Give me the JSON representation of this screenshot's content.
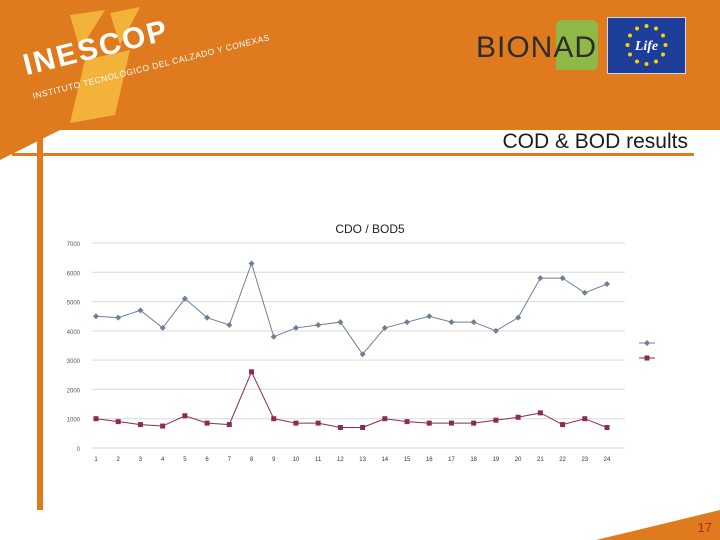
{
  "header": {
    "inescop_word": "INESCOP",
    "inescop_tagline": "INSTITUTO TECNOLÓGICO DEL CALZADO Y CONEXAS",
    "bionad_logo_text": "BIONAD",
    "life_logo_text": "Life",
    "accent_color": "#e07a1f"
  },
  "slide": {
    "title": "COD & BOD results",
    "page_number": "17"
  },
  "chart_data": {
    "type": "line",
    "title": "CDO / BOD5",
    "xlabel": "",
    "ylabel": "",
    "categories": [
      "1",
      "2",
      "3",
      "4",
      "5",
      "6",
      "7",
      "8",
      "9",
      "10",
      "11",
      "12",
      "13",
      "14",
      "15",
      "16",
      "17",
      "18",
      "19",
      "20",
      "21",
      "22",
      "23",
      "24"
    ],
    "y_ticks": [
      "0",
      "1000",
      "2000",
      "3000",
      "4000",
      "5000",
      "6000",
      "7000"
    ],
    "ylim": [
      0,
      7000
    ],
    "grid": true,
    "legend_position": "right",
    "series": [
      {
        "name": "",
        "marker": "diamond",
        "color": "#6f7f95",
        "values": [
          4500,
          4450,
          4700,
          4100,
          5100,
          4450,
          4200,
          6300,
          3800,
          4100,
          4200,
          4300,
          3200,
          4100,
          4300,
          4500,
          4300,
          4300,
          4000,
          4450,
          5800,
          5800,
          5300,
          5600
        ]
      },
      {
        "name": "",
        "marker": "square",
        "color": "#8b2a52",
        "values": [
          1000,
          900,
          800,
          750,
          1100,
          850,
          800,
          2600,
          1000,
          850,
          850,
          700,
          700,
          1000,
          900,
          850,
          850,
          850,
          950,
          1050,
          1200,
          800,
          1000,
          700
        ]
      }
    ]
  }
}
